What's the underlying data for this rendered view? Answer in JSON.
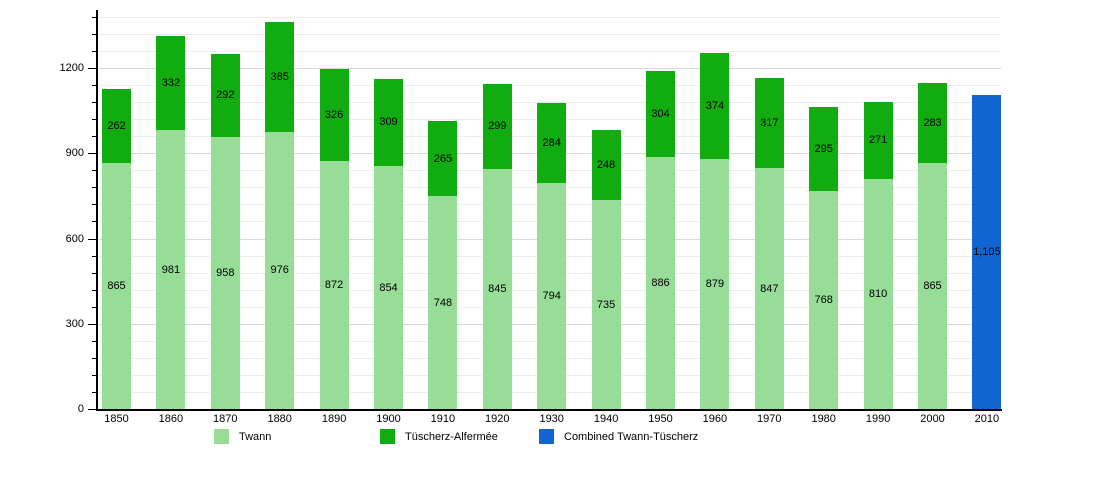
{
  "chart_data": {
    "type": "bar",
    "stacked": true,
    "title": "",
    "xlabel": "",
    "ylabel": "",
    "categories": [
      "1850",
      "1860",
      "1870",
      "1880",
      "1890",
      "1900",
      "1910",
      "1920",
      "1930",
      "1940",
      "1950",
      "1960",
      "1970",
      "1980",
      "1990",
      "2000",
      "2010"
    ],
    "series": [
      {
        "name": "Twann",
        "color": "#97DD97",
        "values": [
          865,
          981,
          958,
          976,
          872,
          854,
          748,
          845,
          794,
          735,
          886,
          879,
          847,
          768,
          810,
          865,
          null
        ]
      },
      {
        "name": "Tüscherz-Alfermée",
        "color": "#10AC10",
        "values": [
          262,
          332,
          292,
          385,
          326,
          309,
          265,
          299,
          284,
          248,
          304,
          374,
          317,
          295,
          271,
          283,
          null
        ]
      },
      {
        "name": "Combined Twann-Tüscherz",
        "color": "#1065D1",
        "values": [
          null,
          null,
          null,
          null,
          null,
          null,
          null,
          null,
          null,
          null,
          null,
          null,
          null,
          null,
          null,
          null,
          1105
        ]
      }
    ],
    "ylim": [
      0,
      1408
    ],
    "yticks": [
      0,
      300,
      600,
      900,
      1200
    ],
    "grid": {
      "step": 60,
      "max": 1380,
      "minor_color": "#ececec",
      "major_color": "#d9d9d9"
    },
    "legend_position": "bottom",
    "axis_color": "#000000",
    "label_color": "#000000",
    "background": "#ffffff"
  }
}
